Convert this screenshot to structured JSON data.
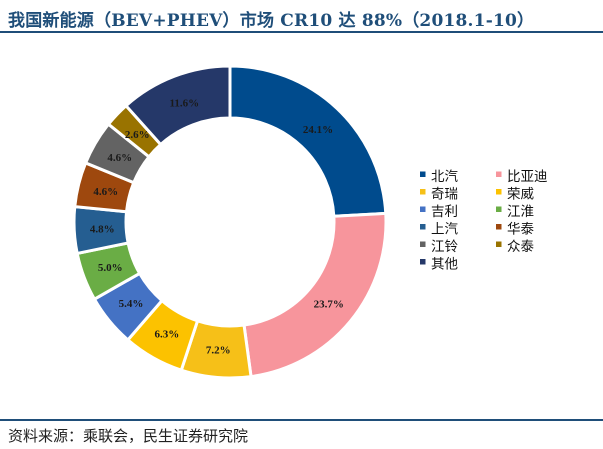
{
  "chart_data": {
    "type": "pie",
    "variant": "donut",
    "title": "我国新能源（BEV+PHEV）市场 CR10 达 88%（2018.1-10）",
    "source": "资料来源：乘联会，民生证券研究院",
    "unit": "%",
    "slices": [
      {
        "name": "北汽",
        "value": 24.1,
        "label": "24.1%",
        "color": "#004b8d"
      },
      {
        "name": "比亚迪",
        "value": 23.7,
        "label": "23.7%",
        "color": "#f7959c"
      },
      {
        "name": "奇瑞",
        "value": 7.2,
        "label": "7.2%",
        "color": "#f6c018"
      },
      {
        "name": "荣威",
        "value": 6.3,
        "label": "6.3%",
        "color": "#fcc200"
      },
      {
        "name": "吉利",
        "value": 5.4,
        "label": "5.4%",
        "color": "#4472c4"
      },
      {
        "name": "江淮",
        "value": 5.0,
        "label": "5.0%",
        "color": "#6aad45"
      },
      {
        "name": "上汽",
        "value": 4.8,
        "label": "4.8%",
        "color": "#255e91"
      },
      {
        "name": "华泰",
        "value": 4.6,
        "label": "4.6%",
        "color": "#9e480e"
      },
      {
        "name": "江铃",
        "value": 4.6,
        "label": "4.6%",
        "color": "#636363"
      },
      {
        "name": "众泰",
        "value": 2.6,
        "label": "2.6%",
        "color": "#997300"
      },
      {
        "name": "其他",
        "value": 11.6,
        "label": "11.6%",
        "color": "#253869"
      }
    ],
    "legend_position": "right",
    "legend_columns": 2
  }
}
